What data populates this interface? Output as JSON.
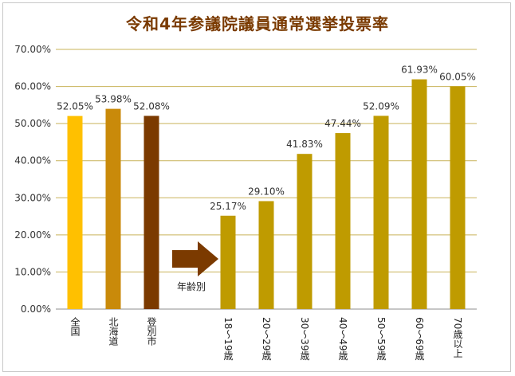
{
  "chart_data": {
    "type": "bar",
    "title": "令和4年参議院議員通常選挙投票率",
    "ylim": [
      0,
      70
    ],
    "yticks": [
      "0.00%",
      "10.00%",
      "20.00%",
      "30.00%",
      "40.00%",
      "50.00%",
      "60.00%",
      "70.00%"
    ],
    "grid": true,
    "categories": [
      "全国",
      "北海道",
      "登別市",
      "",
      "18～19歳",
      "20～29歳",
      "30～39歳",
      "40～49歳",
      "50～59歳",
      "60～69歳",
      "70歳以上"
    ],
    "values": [
      52.05,
      53.98,
      52.08,
      null,
      25.17,
      29.1,
      41.83,
      47.44,
      52.09,
      61.93,
      60.05
    ],
    "data_labels": [
      "52.05%",
      "53.98%",
      "52.08%",
      "",
      "25.17%",
      "29.10%",
      "41.83%",
      "47.44%",
      "52.09%",
      "61.93%",
      "60.05%"
    ],
    "bar_colors": [
      "#FFC000",
      "#C98A0A",
      "#7B3A00",
      "",
      "#BF9B00",
      "#BF9B00",
      "#BF9B00",
      "#BF9B00",
      "#BF9B00",
      "#BF9B00",
      "#BF9B00"
    ],
    "annotation": {
      "text": "年齢別",
      "arrow_color": "#7B3A00"
    }
  }
}
